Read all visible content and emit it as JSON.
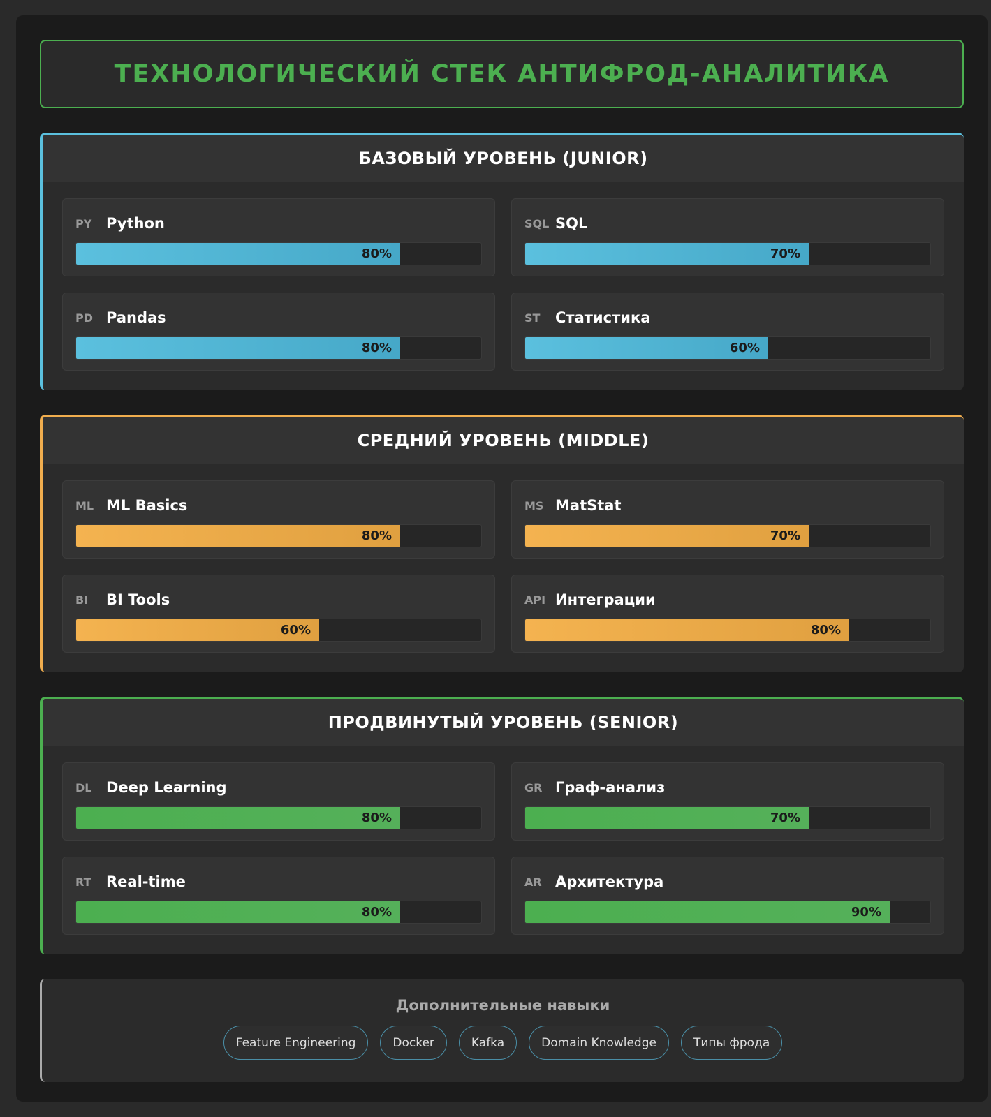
{
  "title": "ТЕХНОЛОГИЧЕСКИЙ СТЕК АНТИФРОД-АНАЛИТИКА",
  "sections": [
    {
      "title": "БАЗОВЫЙ УРОВЕНЬ (JUNIOR)",
      "color": "#5bc0de",
      "gradient": [
        "#5bc0de",
        "#46a8c8"
      ],
      "skills": [
        {
          "abbr": "PY",
          "name": "Python",
          "percent": 80,
          "label": "80%"
        },
        {
          "abbr": "SQL",
          "name": "SQL",
          "percent": 70,
          "label": "70%"
        },
        {
          "abbr": "PD",
          "name": "Pandas",
          "percent": 80,
          "label": "80%"
        },
        {
          "abbr": "ST",
          "name": "Статистика",
          "percent": 60,
          "label": "60%"
        }
      ]
    },
    {
      "title": "СРЕДНИЙ УРОВЕНЬ (MIDDLE)",
      "color": "#f0ad4e",
      "gradient": [
        "#f4b350",
        "#e0a040"
      ],
      "skills": [
        {
          "abbr": "ML",
          "name": "ML Basics",
          "percent": 80,
          "label": "80%"
        },
        {
          "abbr": "MS",
          "name": "MatStat",
          "percent": 70,
          "label": "70%"
        },
        {
          "abbr": "BI",
          "name": "BI Tools",
          "percent": 60,
          "label": "60%"
        },
        {
          "abbr": "API",
          "name": "Интеграции",
          "percent": 80,
          "label": "80%"
        }
      ]
    },
    {
      "title": "ПРОДВИНУТЫЙ УРОВЕНЬ (SENIOR)",
      "color": "#4caf50",
      "gradient": [
        "#4caf50",
        "#55b05a"
      ],
      "skills": [
        {
          "abbr": "DL",
          "name": "Deep Learning",
          "percent": 80,
          "label": "80%"
        },
        {
          "abbr": "GR",
          "name": "Граф-анализ",
          "percent": 70,
          "label": "70%"
        },
        {
          "abbr": "RT",
          "name": "Real-time",
          "percent": 80,
          "label": "80%"
        },
        {
          "abbr": "AR",
          "name": "Архитектура",
          "percent": 90,
          "label": "90%"
        }
      ]
    }
  ],
  "extra": {
    "title": "Дополнительные навыки",
    "tags": [
      "Feature Engineering",
      "Docker",
      "Kafka",
      "Domain Knowledge",
      "Типы фрода"
    ]
  }
}
